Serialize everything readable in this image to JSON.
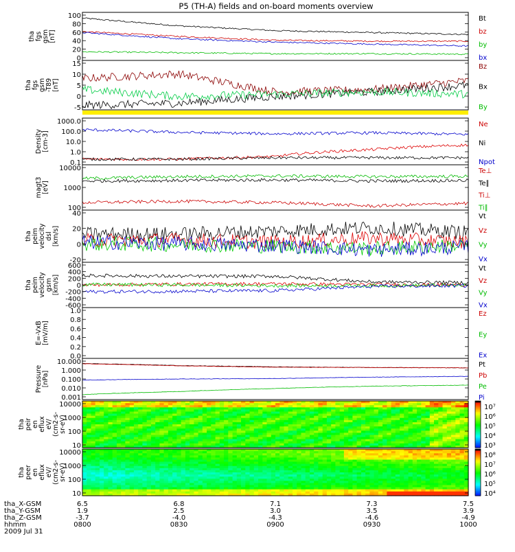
{
  "title": "P5 (TH-A) fields and on-board moments overview",
  "panels": [
    {
      "id": "fgs",
      "ylabel": [
        "tha",
        "fgs",
        "gsm",
        "[nT]"
      ],
      "ticks": [
        "100",
        "80",
        "60",
        "40",
        "20",
        "0"
      ],
      "legend": [
        {
          "text": "Bt",
          "color": "#000000"
        },
        {
          "text": "bz",
          "color": "#cc0000"
        },
        {
          "text": "by",
          "color": "#00bb00"
        },
        {
          "text": "bx",
          "color": "#0000cc"
        }
      ]
    },
    {
      "id": "fgl",
      "ylabel": [
        "tha",
        "fgs",
        "gsm",
        "-T89",
        "[nT]"
      ],
      "ticks": [
        "15",
        "10",
        "5",
        "0",
        "-5"
      ],
      "legend": [
        {
          "text": "Bz",
          "color": "#8b0000"
        },
        {
          "text": "Bx",
          "color": "#000000"
        },
        {
          "text": "By",
          "color": "#00bb00"
        }
      ]
    },
    {
      "id": "density",
      "ylabel": [
        "Density",
        "[cm-3]"
      ],
      "ticks": [
        "1000.0",
        "100.0",
        "10.0",
        "1.0",
        "0.1"
      ],
      "legend": [
        {
          "text": "Ne",
          "color": "#cc0000"
        },
        {
          "text": "Ni",
          "color": "#000000"
        },
        {
          "text": "Npot",
          "color": "#0000cc"
        }
      ]
    },
    {
      "id": "temp",
      "ylabel": [
        "magt3",
        "[eV]"
      ],
      "ticks": [
        "10000",
        "1000",
        "100"
      ],
      "legend": [
        {
          "text": "Te⊥",
          "color": "#cc0000"
        },
        {
          "text": "Te∥",
          "color": "#000000"
        },
        {
          "text": "Ti⊥",
          "color": "#cc0000"
        },
        {
          "text": "Ti∥",
          "color": "#00bb00"
        }
      ]
    },
    {
      "id": "peimvel",
      "ylabel": [
        "tha",
        "peim",
        "velocity",
        "dsl",
        "[km/s]"
      ],
      "ticks": [
        "40",
        "20",
        "0",
        "-20"
      ],
      "legend": [
        {
          "text": "Vt",
          "color": "#000000"
        },
        {
          "text": "Vz",
          "color": "#cc0000"
        },
        {
          "text": "Vy",
          "color": "#00bb00"
        },
        {
          "text": "Vx",
          "color": "#0000cc"
        }
      ]
    },
    {
      "id": "peimgsm",
      "ylabel": [
        "tha",
        "peim",
        "velocity",
        "gsm",
        "[km/s]"
      ],
      "ticks": [
        "600",
        "400",
        "200",
        "0",
        "-200",
        "-400",
        "-600"
      ],
      "legend": [
        {
          "text": "Vt",
          "color": "#000000"
        },
        {
          "text": "Vz",
          "color": "#cc0000"
        },
        {
          "text": "Vy",
          "color": "#00bb00"
        },
        {
          "text": "Vx",
          "color": "#0000cc"
        }
      ]
    },
    {
      "id": "efield",
      "ylabel": [
        "E=-VxB",
        "[mV/m]"
      ],
      "ticks": [
        "1.0",
        "0.8",
        "0.6",
        "0.4",
        "0.2",
        "0.0"
      ],
      "legend": [
        {
          "text": "Ez",
          "color": "#cc0000"
        },
        {
          "text": "Ey",
          "color": "#00bb00"
        },
        {
          "text": "Ex",
          "color": "#0000cc"
        }
      ]
    },
    {
      "id": "pressure",
      "ylabel": [
        "Pressure",
        "[nPa]"
      ],
      "ticks": [
        "10.000",
        "1.000",
        "0.100",
        "0.010",
        "0.001"
      ],
      "legend": [
        {
          "text": "Pt",
          "color": "#000000"
        },
        {
          "text": "Pb",
          "color": "#cc0000"
        },
        {
          "text": "Pe",
          "color": "#00bb00"
        },
        {
          "text": "Pi",
          "color": "#0000cc"
        }
      ]
    },
    {
      "id": "peir",
      "ylabel": [
        "tha",
        "peir",
        "en",
        "eflux",
        "eV/",
        "(cm2-s-",
        "sr-eV)"
      ],
      "ticks": [
        "10000",
        "1000",
        "100",
        "10"
      ],
      "cbar": [
        "10⁷",
        "10⁶",
        "10⁵",
        "10⁴",
        "10³"
      ]
    },
    {
      "id": "peer",
      "ylabel": [
        "tha",
        "peer",
        "en",
        "eflux",
        "eV/",
        "(cm2-s-",
        "sr-eV)"
      ],
      "ticks": [
        "10000",
        "1000",
        "100",
        "10"
      ],
      "cbar": [
        "10⁸",
        "10⁷",
        "10⁶",
        "10⁵",
        "10⁴"
      ]
    }
  ],
  "footer": {
    "rows": [
      {
        "label": "tha_X-GSM",
        "values": [
          "6.5",
          "6.8",
          "7.1",
          "7.3",
          "7.5"
        ]
      },
      {
        "label": "tha_Y-GSM",
        "values": [
          "1.9",
          "2.5",
          "3.0",
          "3.5",
          "3.9"
        ]
      },
      {
        "label": "tha_Z-GSM",
        "values": [
          "-3.7",
          "-4.0",
          "-4.3",
          "-4.6",
          "-4.9"
        ]
      },
      {
        "label": "hhmm",
        "values": [
          "0800",
          "0830",
          "0900",
          "0930",
          "1000"
        ]
      }
    ],
    "date": "2009 Jul 31"
  },
  "chart_data": [
    {
      "type": "line",
      "panel": "tha fgs gsm [nT]",
      "x": [
        "0800",
        "0830",
        "0900",
        "0930",
        "1000"
      ],
      "ylim": [
        0,
        100
      ],
      "series": [
        {
          "name": "Bt",
          "values": [
            88,
            72,
            62,
            58,
            54
          ]
        },
        {
          "name": "bz",
          "values": [
            60,
            50,
            42,
            40,
            40
          ]
        },
        {
          "name": "by",
          "values": [
            18,
            16,
            14,
            14,
            13
          ]
        },
        {
          "name": "bx",
          "values": [
            58,
            45,
            38,
            34,
            30
          ]
        }
      ]
    },
    {
      "type": "line",
      "panel": "tha fgs gsm -T89 [nT]",
      "x": [
        "0800",
        "0830",
        "0900",
        "0930",
        "1000"
      ],
      "ylim": [
        -7,
        15
      ],
      "series": [
        {
          "name": "Bz",
          "values": [
            7,
            9,
            1,
            2,
            6
          ]
        },
        {
          "name": "Bx",
          "values": [
            -5,
            -4,
            -1,
            1,
            4
          ]
        },
        {
          "name": "By",
          "values": [
            2,
            -1,
            0,
            1,
            0
          ]
        }
      ]
    },
    {
      "type": "line",
      "panel": "Density [cm-3]",
      "log": true,
      "x": [
        "0800",
        "0830",
        "0900",
        "0930",
        "1000"
      ],
      "ylim": [
        0.1,
        1000
      ],
      "series": [
        {
          "name": "Ne",
          "values": [
            0.3,
            0.3,
            0.5,
            2,
            5
          ]
        },
        {
          "name": "Ni",
          "values": [
            0.3,
            0.3,
            0.4,
            0.4,
            0.4
          ]
        },
        {
          "name": "Npot",
          "values": [
            100,
            60,
            45,
            55,
            40
          ]
        }
      ]
    },
    {
      "type": "line",
      "panel": "magt3 [eV]",
      "log": true,
      "x": [
        "0800",
        "0830",
        "0900",
        "0930",
        "1000"
      ],
      "ylim": [
        50,
        10000
      ],
      "series": [
        {
          "name": "Te∥",
          "values": [
            1500,
            1600,
            1700,
            1500,
            1600
          ]
        },
        {
          "name": "Ti∥",
          "values": [
            2000,
            2500,
            2700,
            2500,
            2600
          ]
        },
        {
          "name": "Te⊥",
          "values": [
            120,
            140,
            120,
            80,
            110
          ]
        }
      ]
    },
    {
      "type": "line",
      "panel": "tha peim velocity dsl [km/s]",
      "x": [
        "0800",
        "0830",
        "0900",
        "0930",
        "1000"
      ],
      "ylim": [
        -25,
        40
      ],
      "series": [
        {
          "name": "Vt",
          "values": [
            10,
            10,
            14,
            18,
            12
          ]
        },
        {
          "name": "Vz",
          "values": [
            2,
            3,
            0,
            5,
            0
          ]
        },
        {
          "name": "Vy",
          "values": [
            -2,
            -3,
            -5,
            -8,
            -4
          ]
        },
        {
          "name": "Vx",
          "values": [
            0,
            -2,
            -4,
            -10,
            -6
          ]
        }
      ]
    },
    {
      "type": "line",
      "panel": "tha peim velocity gsm [km/s]",
      "x": [
        "0800",
        "0830",
        "0900",
        "0930",
        "1000"
      ],
      "ylim": [
        -600,
        600
      ],
      "series": [
        {
          "name": "Vt",
          "values": [
            250,
            230,
            230,
            80,
            60
          ]
        },
        {
          "name": "Vz",
          "values": [
            0,
            20,
            30,
            10,
            0
          ]
        },
        {
          "name": "Vy",
          "values": [
            10,
            0,
            -20,
            -20,
            -10
          ]
        },
        {
          "name": "Vx",
          "values": [
            -180,
            -170,
            -150,
            -40,
            -20
          ]
        }
      ]
    },
    {
      "type": "line",
      "panel": "E=-VxB [mV/m]",
      "x": [
        "0800",
        "0830",
        "0900",
        "0930",
        "1000"
      ],
      "ylim": [
        0,
        1
      ],
      "series": []
    },
    {
      "type": "line",
      "panel": "Pressure [nPa]",
      "log": true,
      "x": [
        "0800",
        "0830",
        "0900",
        "0930",
        "1000"
      ],
      "ylim": [
        0.001,
        10
      ],
      "series": [
        {
          "name": "Pt",
          "values": [
            3.2,
            2.0,
            1.5,
            1.3,
            1.2
          ]
        },
        {
          "name": "Pb",
          "values": [
            3.0,
            1.9,
            1.4,
            1.3,
            1.2
          ]
        },
        {
          "name": "Pe",
          "values": [
            0.003,
            0.006,
            0.012,
            0.02,
            0.025
          ]
        },
        {
          "name": "Pi",
          "values": [
            0.08,
            0.1,
            0.11,
            0.15,
            0.18
          ]
        }
      ]
    },
    {
      "type": "heatmap",
      "panel": "tha peir en eflux",
      "log": true,
      "ylim": [
        10,
        20000
      ],
      "x": [
        "0800",
        "0830",
        "0900",
        "0930",
        "1000"
      ]
    },
    {
      "type": "heatmap",
      "panel": "tha peer en eflux",
      "log": true,
      "ylim": [
        10,
        20000
      ],
      "x": [
        "0800",
        "0830",
        "0900",
        "0930",
        "1000"
      ]
    }
  ]
}
